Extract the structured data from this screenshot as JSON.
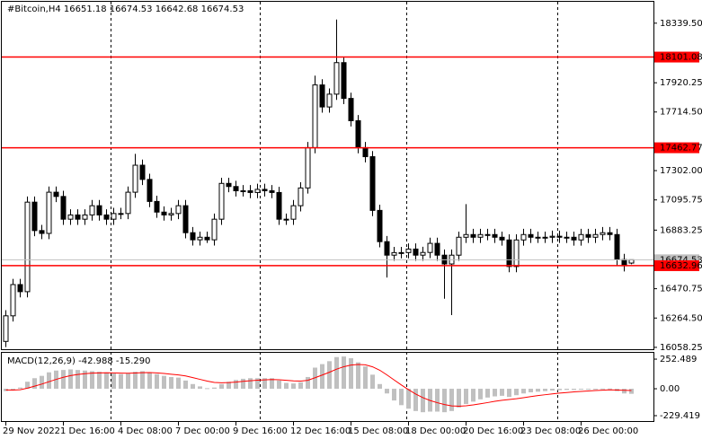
{
  "chart_data": [
    {
      "type": "candlestick",
      "title": "#Bitcoin,H4  16651.18 16674.53 16642.68 16674.53",
      "categories": [
        "29 Nov 2022",
        null,
        null,
        null,
        null,
        null,
        null,
        null,
        "1 Dec 16:00",
        null,
        null,
        null,
        null,
        null,
        null,
        null,
        "4 Dec 08:00",
        null,
        null,
        null,
        null,
        null,
        null,
        null,
        "7 Dec 00:00",
        null,
        null,
        null,
        null,
        null,
        null,
        null,
        "9 Dec 16:00",
        null,
        null,
        null,
        null,
        null,
        null,
        null,
        "12 Dec 16:00",
        null,
        null,
        null,
        null,
        null,
        null,
        null,
        "15 Dec 08:00",
        null,
        null,
        null,
        null,
        null,
        null,
        null,
        "18 Dec 00:00",
        null,
        null,
        null,
        null,
        null,
        null,
        null,
        "20 Dec 16:00",
        null,
        null,
        null,
        null,
        null,
        null,
        null,
        "23 Dec 08:00",
        null,
        null,
        null,
        null,
        null,
        null,
        null,
        "26 Dec 00:00",
        null,
        null,
        null,
        null,
        null,
        null,
        null
      ],
      "open": [
        16100,
        16280,
        16500,
        16450,
        17080,
        16880,
        16860,
        17150,
        17120,
        16960,
        16990,
        16960,
        16990,
        17055,
        16990,
        16960,
        17000,
        17000,
        17150,
        17340,
        17240,
        17085,
        17010,
        16990,
        17000,
        17055,
        16865,
        16815,
        16833,
        16815,
        16960,
        17212,
        17190,
        17160,
        17160,
        17148,
        17170,
        17160,
        17148,
        16960,
        16960,
        17055,
        17180,
        17464,
        17905,
        17750,
        17840,
        18062,
        17810,
        17653,
        17464,
        17400,
        17022,
        16802,
        16707,
        16725,
        16725,
        16750,
        16707,
        16726,
        16790,
        16707,
        16645,
        16707,
        16833,
        16852,
        16833,
        16852,
        16852,
        16833,
        16814,
        16627,
        16814,
        16852,
        16833,
        16833,
        16833,
        16840,
        16833,
        16833,
        16814,
        16852,
        16833,
        16852,
        16865,
        16852,
        16676,
        16651.18
      ],
      "high": [
        16320,
        16540,
        16540,
        17120,
        17120,
        16920,
        17190,
        17190,
        17160,
        17030,
        17030,
        17030,
        17095,
        17095,
        17030,
        17040,
        17040,
        17190,
        17420,
        17380,
        17280,
        17125,
        17050,
        17040,
        17095,
        17095,
        16905,
        16873,
        16873,
        17000,
        17252,
        17252,
        17230,
        17200,
        17200,
        17210,
        17210,
        17200,
        17188,
        17000,
        17095,
        17220,
        17504,
        17970,
        17945,
        17880,
        18365,
        18102,
        17850,
        17693,
        17504,
        17440,
        17062,
        16842,
        16765,
        16765,
        16790,
        16790,
        16766,
        16830,
        16830,
        16747,
        16747,
        16873,
        17066,
        16892,
        16892,
        16892,
        16892,
        16873,
        16854,
        16854,
        16892,
        16892,
        16873,
        16873,
        16880,
        16880,
        16873,
        16873,
        16892,
        16892,
        16892,
        16905,
        16905,
        16892,
        16716,
        16674.53
      ],
      "low": [
        16060,
        16240,
        16410,
        16410,
        16840,
        16820,
        16820,
        17080,
        16920,
        16920,
        16920,
        16920,
        16950,
        16950,
        16920,
        16920,
        16960,
        16960,
        17110,
        17200,
        17045,
        16970,
        16950,
        16950,
        16960,
        16825,
        16775,
        16775,
        16793,
        16775,
        16920,
        17150,
        17120,
        17120,
        17108,
        17108,
        17120,
        17108,
        16920,
        16920,
        16920,
        17015,
        17140,
        17424,
        17710,
        17710,
        17800,
        17770,
        17613,
        17424,
        17360,
        16982,
        16762,
        16550,
        16667,
        16685,
        16685,
        16667,
        16667,
        16686,
        16667,
        16400,
        16285,
        16667,
        16793,
        16793,
        16793,
        16812,
        16793,
        16774,
        16587,
        16587,
        16774,
        16793,
        16793,
        16793,
        16793,
        16793,
        16793,
        16774,
        16774,
        16793,
        16793,
        16812,
        16812,
        16636,
        16592,
        16642.68
      ],
      "close": [
        16280,
        16500,
        16450,
        17080,
        16880,
        16860,
        17150,
        17120,
        16960,
        16990,
        16960,
        16990,
        17055,
        16990,
        16960,
        17000,
        17000,
        17150,
        17340,
        17240,
        17085,
        17010,
        16990,
        17000,
        17055,
        16865,
        16815,
        16833,
        16815,
        16960,
        17212,
        17190,
        17160,
        17160,
        17148,
        17170,
        17160,
        17148,
        16960,
        16960,
        17055,
        17180,
        17464,
        17905,
        17750,
        17840,
        18062,
        17810,
        17653,
        17464,
        17400,
        17022,
        16802,
        16707,
        16725,
        16725,
        16750,
        16707,
        16726,
        16790,
        16707,
        16645,
        16707,
        16833,
        16852,
        16833,
        16852,
        16852,
        16833,
        16814,
        16627,
        16814,
        16852,
        16833,
        16833,
        16833,
        16840,
        16833,
        16833,
        16814,
        16852,
        16833,
        16852,
        16865,
        16852,
        16676,
        16632,
        16674.53
      ],
      "up_color": "#ffffff",
      "down_color": "#000000",
      "ylim": [
        16045,
        18490
      ],
      "yticks": [
        {
          "value": 18339.5,
          "label": "18339.50"
        },
        17920.25,
        {
          "value": 17714.5,
          "label": "17714.50"
        },
        {
          "value": 17302,
          "label": "17302.00"
        },
        17095.75,
        16883.25,
        16470.75,
        {
          "value": 16264.5,
          "label": "16264.50"
        },
        16058.25
      ],
      "last_price": 16674.53,
      "last_price_color": "#c0c0c0",
      "levels": [
        18101.08,
        17462.77,
        16632.96
      ],
      "level_color": "#ff0000"
    },
    {
      "type": "macd",
      "title": "MACD(12,26,9) -42.988 -15.290",
      "series": [
        {
          "color": "#c0c0c0",
          "values": [
            -20,
            -10,
            10,
            60,
            90,
            110,
            140,
            155,
            160,
            165,
            160,
            155,
            150,
            145,
            140,
            130,
            125,
            130,
            145,
            150,
            140,
            125,
            110,
            100,
            95,
            70,
            40,
            20,
            5,
            10,
            40,
            60,
            75,
            85,
            90,
            90,
            90,
            90,
            70,
            50,
            45,
            55,
            100,
            180,
            210,
            235,
            270,
            275,
            260,
            225,
            190,
            120,
            40,
            -40,
            -100,
            -140,
            -170,
            -190,
            -200,
            -195,
            -195,
            -200,
            -190,
            -160,
            -130,
            -110,
            -90,
            -75,
            -65,
            -60,
            -70,
            -55,
            -40,
            -30,
            -25,
            -20,
            -15,
            -12,
            -10,
            -10,
            -5,
            -5,
            0,
            2,
            2,
            -20,
            -40,
            -42.988
          ]
        },
        {
          "color": "#ff0000",
          "values": [
            -10,
            -11,
            -8,
            5,
            22,
            40,
            60,
            80,
            98,
            112,
            122,
            128,
            133,
            135,
            136,
            135,
            133,
            132,
            134,
            137,
            138,
            135,
            130,
            124,
            118,
            109,
            95,
            80,
            65,
            54,
            51,
            53,
            57,
            63,
            68,
            73,
            76,
            79,
            77,
            72,
            67,
            65,
            72,
            94,
            117,
            141,
            167,
            188,
            202,
            207,
            204,
            187,
            158,
            118,
            75,
            32,
            -8,
            -45,
            -76,
            -100,
            -119,
            -135,
            -146,
            -149,
            -145,
            -138,
            -128,
            -118,
            -107,
            -98,
            -92,
            -85,
            -76,
            -67,
            -58,
            -51,
            -44,
            -37,
            -32,
            -27,
            -23,
            -19,
            -15,
            -12,
            -9,
            -11,
            -13,
            -15.29
          ]
        }
      ],
      "ylim": [
        -283,
        314
      ],
      "yticks": [
        252.489,
        {
          "value": 0,
          "label": "0.00"
        },
        -229.419
      ]
    }
  ]
}
